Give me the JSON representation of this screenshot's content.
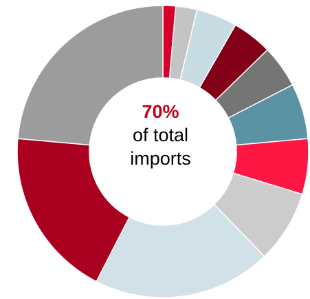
{
  "chart_data": {
    "type": "pie",
    "variant": "donut",
    "title": "",
    "center_text": {
      "value": "70%",
      "line1": "of total",
      "line2": "imports"
    },
    "slices": [
      {
        "value": 1.5,
        "color": "#d6002a"
      },
      {
        "value": 2.5,
        "color": "#c4c4c4"
      },
      {
        "value": 4.8,
        "color": "#c8dce3"
      },
      {
        "value": 4.7,
        "color": "#820017"
      },
      {
        "value": 5.0,
        "color": "#757575"
      },
      {
        "value": 6.5,
        "color": "#5a93a4"
      },
      {
        "value": 6.5,
        "color": "#ff1744"
      },
      {
        "value": 8.5,
        "color": "#cccccc"
      },
      {
        "value": 21.0,
        "color": "#d2e1e8"
      },
      {
        "value": 20.0,
        "color": "#aa0020"
      },
      {
        "value": 25.0,
        "color": "#9c9c9c"
      }
    ]
  }
}
